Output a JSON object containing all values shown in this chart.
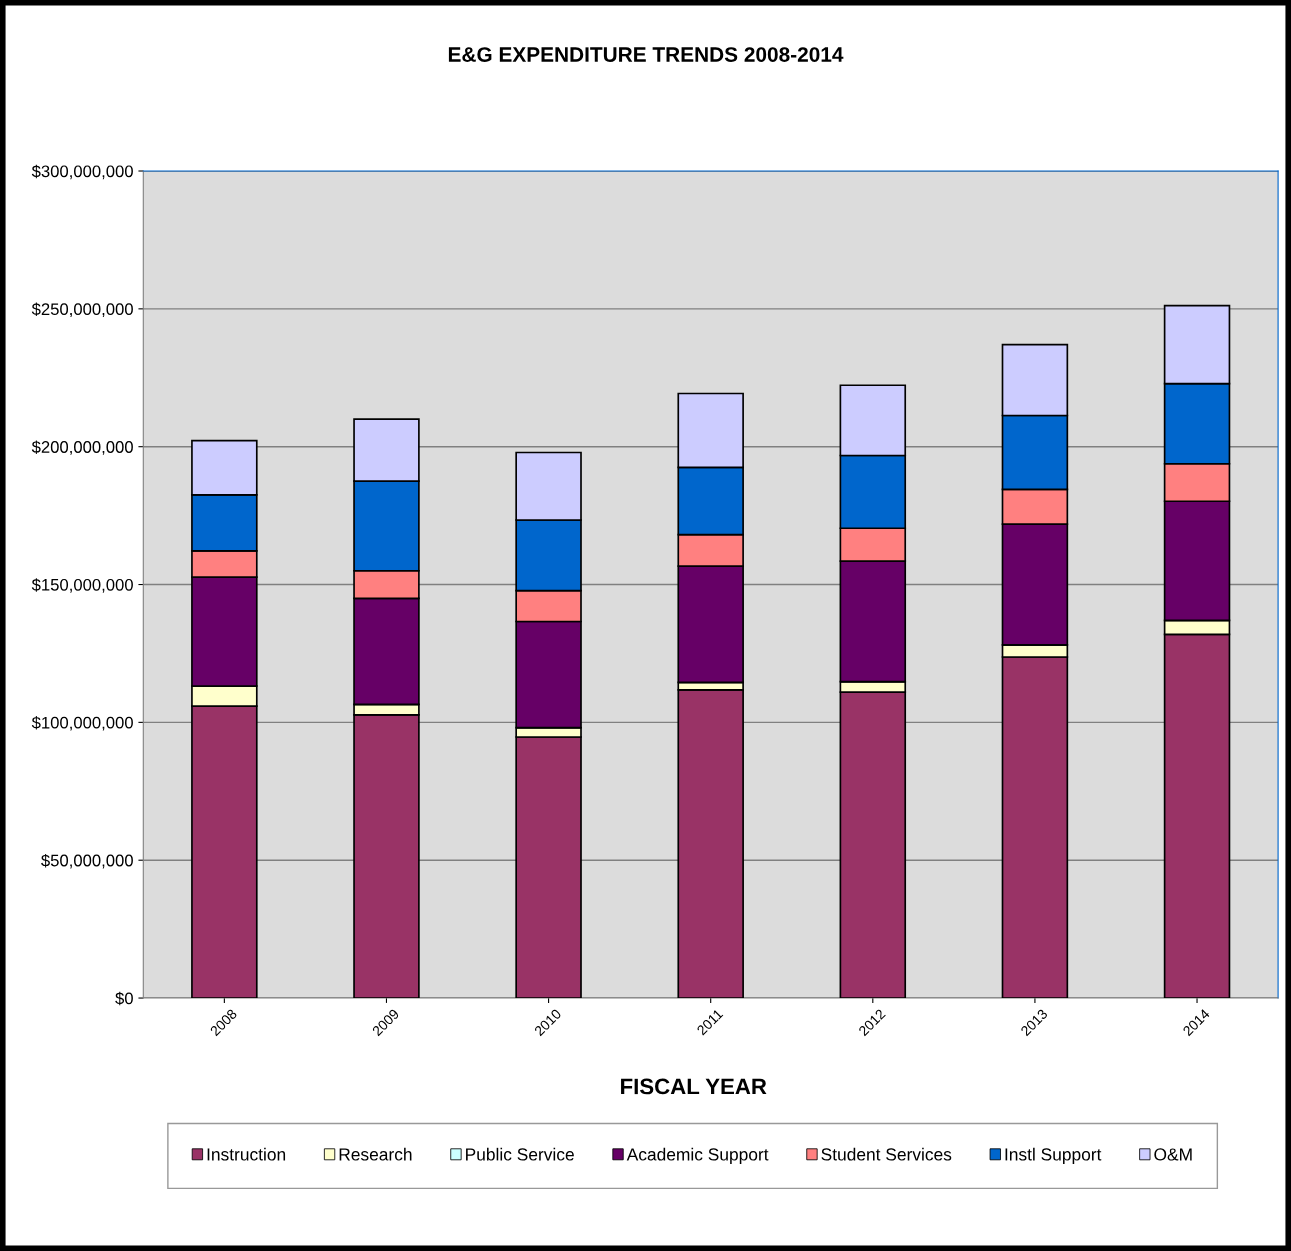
{
  "chart_data": {
    "type": "bar",
    "stacked": true,
    "title": "E&G EXPENDITURE TRENDS 2008-2014",
    "xlabel": "FISCAL YEAR",
    "categories": [
      "2008",
      "2009",
      "2010",
      "2011",
      "2012",
      "2013",
      "2014"
    ],
    "series": [
      {
        "name": "Instruction",
        "color": "#993366",
        "values": [
          105900000,
          102700000,
          94700000,
          111800000,
          111000000,
          123700000,
          131900000
        ]
      },
      {
        "name": "Research",
        "color": "#ffffcc",
        "values": [
          7300000,
          3800000,
          3400000,
          2700000,
          3800000,
          4400000,
          5100000
        ]
      },
      {
        "name": "Public Service",
        "color": "#ccffff",
        "values": [
          0,
          0,
          0,
          0,
          0,
          0,
          0
        ]
      },
      {
        "name": "Academic Support",
        "color": "#660066",
        "values": [
          39500000,
          38500000,
          38500000,
          42200000,
          43700000,
          43800000,
          43200000
        ]
      },
      {
        "name": "Student Services",
        "color": "#ff8080",
        "values": [
          9500000,
          10000000,
          11200000,
          11400000,
          11900000,
          12600000,
          13600000
        ]
      },
      {
        "name": "Instl Support",
        "color": "#0066cc",
        "values": [
          20300000,
          32500000,
          25600000,
          24400000,
          26400000,
          26800000,
          29100000
        ]
      },
      {
        "name": "O&M",
        "color": "#ccccff",
        "values": [
          19700000,
          22500000,
          24500000,
          26800000,
          25500000,
          25700000,
          28300000
        ]
      }
    ],
    "ylim": [
      0,
      300000000
    ],
    "yticks": [
      {
        "value": 0,
        "label": "$0"
      },
      {
        "value": 50000000,
        "label": "$50,000,000"
      },
      {
        "value": 100000000,
        "label": "$100,000,000"
      },
      {
        "value": 150000000,
        "label": "$150,000,000"
      },
      {
        "value": 200000000,
        "label": "$200,000,000"
      },
      {
        "value": 250000000,
        "label": "$250,000,000"
      },
      {
        "value": 300000000,
        "label": "$300,000,000"
      }
    ],
    "grid": "y",
    "legend": "bottom"
  }
}
